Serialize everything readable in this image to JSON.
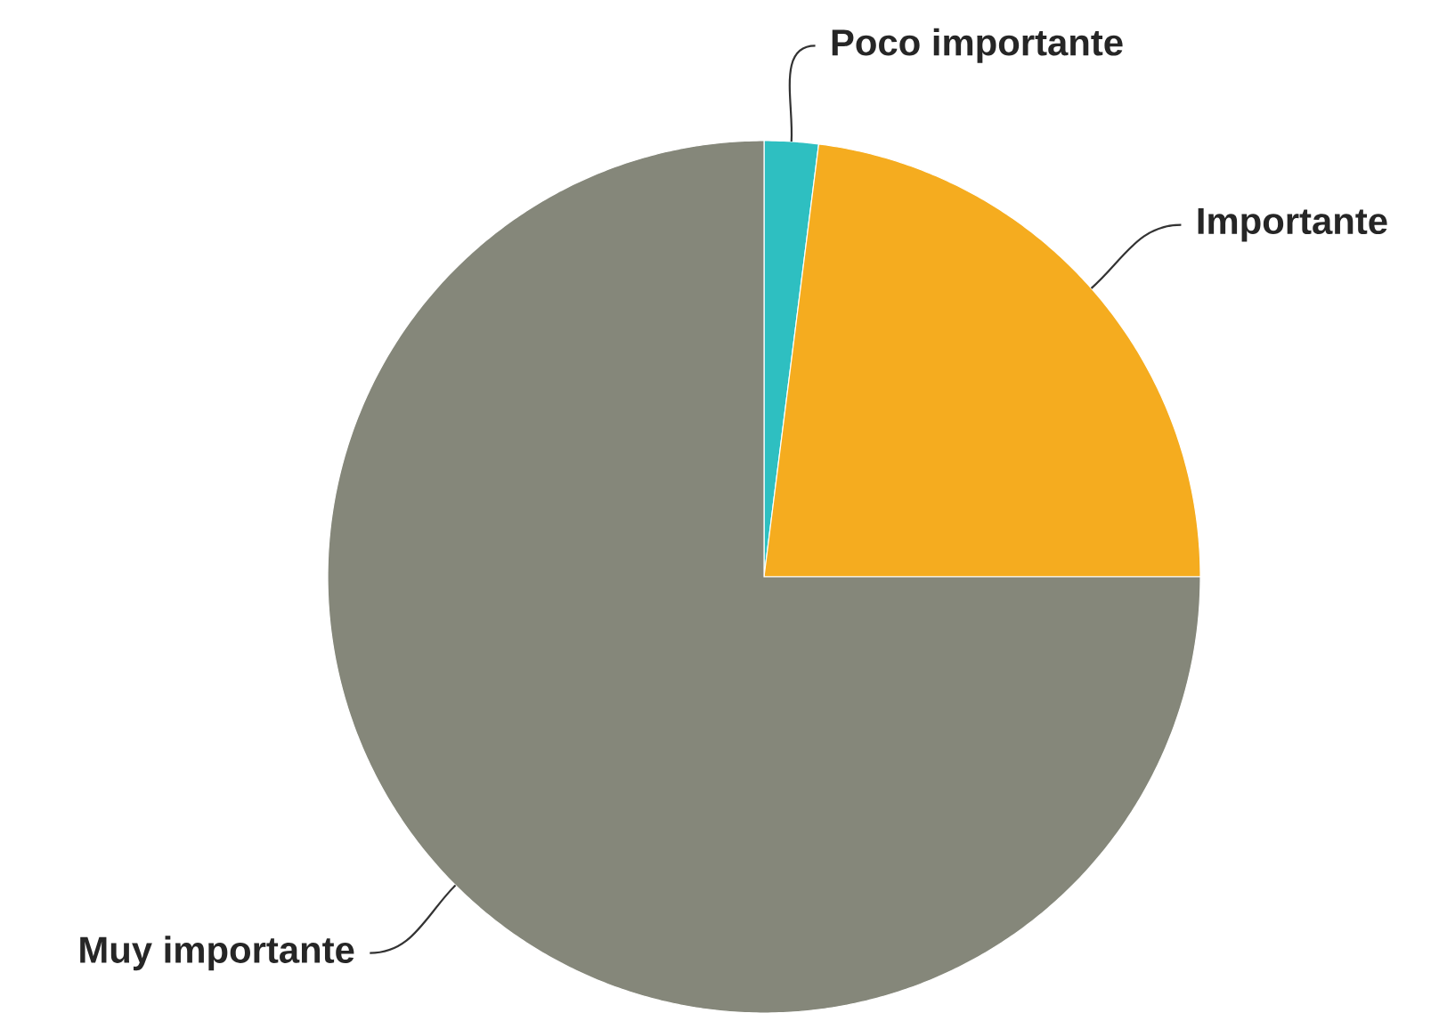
{
  "chart_data": {
    "type": "pie",
    "categories": [
      "Poco importante",
      "Importante",
      "Muy importante"
    ],
    "values": [
      2,
      23,
      75
    ],
    "colors": [
      "#2ebfc1",
      "#f5ac1f",
      "#85877a"
    ]
  }
}
